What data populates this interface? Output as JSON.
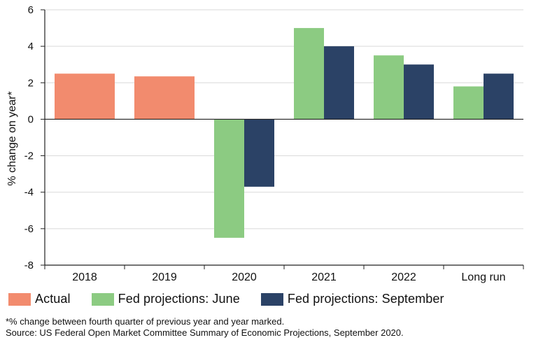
{
  "chart_data": {
    "type": "bar",
    "categories": [
      "2018",
      "2019",
      "2020",
      "2021",
      "2022",
      "Long run"
    ],
    "series": [
      {
        "name": "Actual",
        "values": [
          2.5,
          2.35,
          null,
          null,
          null,
          null
        ]
      },
      {
        "name": "Fed projections: June",
        "values": [
          null,
          null,
          -6.5,
          5.0,
          3.5,
          1.8
        ]
      },
      {
        "name": "Fed projections: September",
        "values": [
          null,
          null,
          -3.7,
          4.0,
          3.0,
          2.5
        ]
      }
    ],
    "ylabel": "% change on year*",
    "xlabel": "",
    "ylim": [
      -8,
      6
    ],
    "yticks": [
      "6",
      "4",
      "2",
      "0",
      "-2",
      "-4",
      "-6",
      "-8"
    ],
    "grid": true,
    "legend_position": "bottom-left",
    "colors": {
      "actual": "#f28b6e",
      "june": "#8ccb82",
      "september": "#2b4266",
      "grid": "#d9d9d9",
      "axis": "#222222"
    }
  },
  "footnote": {
    "line1": "*% change between fourth quarter of previous year and year marked.",
    "line2": "Source: US Federal Open Market Committee Summary of Economic Projections, September 2020."
  }
}
